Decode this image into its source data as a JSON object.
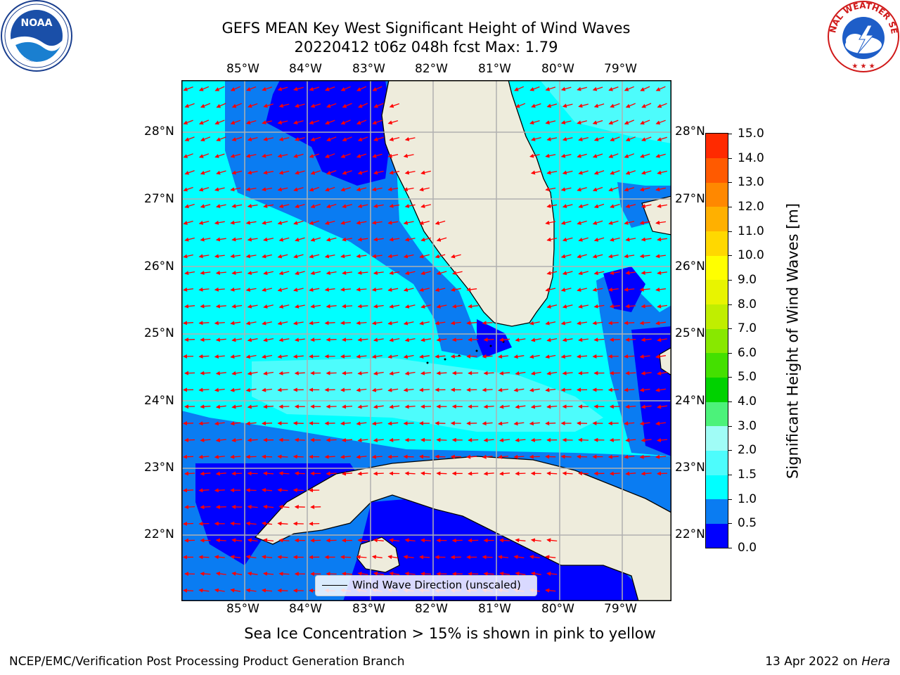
{
  "title": {
    "line1": "GEFS MEAN Key West Significant Height of Wind Waves",
    "line2": "20220412 t06z 048h fcst   Max: 1.79"
  },
  "map": {
    "longitude_ticks": [
      "85°W",
      "84°W",
      "83°W",
      "82°W",
      "81°W",
      "80°W",
      "79°W"
    ],
    "latitude_ticks": [
      "28°N",
      "27°N",
      "26°N",
      "25°N",
      "24°N",
      "23°N",
      "22°N"
    ],
    "extent": {
      "lon_min": -86.0,
      "lon_max": -78.3,
      "lat_min": 21.0,
      "lat_max": 28.75
    },
    "land_color": "#eeecdc",
    "gridline_color": "#b0b0b0",
    "arrow_color": "#ff0000",
    "prevailing_wind_wave_direction": "west-southwest"
  },
  "legend": {
    "label": "Wind Wave Direction (unscaled)"
  },
  "colorbar": {
    "title": "Significant Height of Wind Waves [m]",
    "ticks": [
      "0.0",
      "0.5",
      "1.0",
      "1.5",
      "2.0",
      "3.0",
      "4.0",
      "5.0",
      "6.0",
      "7.0",
      "8.0",
      "9.0",
      "10.0",
      "11.0",
      "12.0",
      "13.0",
      "14.0",
      "15.0"
    ],
    "colors": [
      "#0000ff",
      "#0a7cf2",
      "#00ffff",
      "#4dfcfc",
      "#a0fcf6",
      "#4cf27a",
      "#00d200",
      "#44e000",
      "#88e800",
      "#c0ee00",
      "#e8f400",
      "#ffff00",
      "#ffd800",
      "#ffb000",
      "#ff8800",
      "#ff5a00",
      "#ff2a00",
      "#ff0000"
    ]
  },
  "caption": "Sea Ice Concentration > 15% is shown in pink to yellow",
  "footer": {
    "left": "NCEP/EMC/Verification Post Processing Product Generation Branch",
    "right_date": "13 Apr 2022 on ",
    "right_host": "Hera"
  },
  "logos": {
    "noaa": "NOAA",
    "nws": "NATIONAL WEATHER SERVICE"
  }
}
